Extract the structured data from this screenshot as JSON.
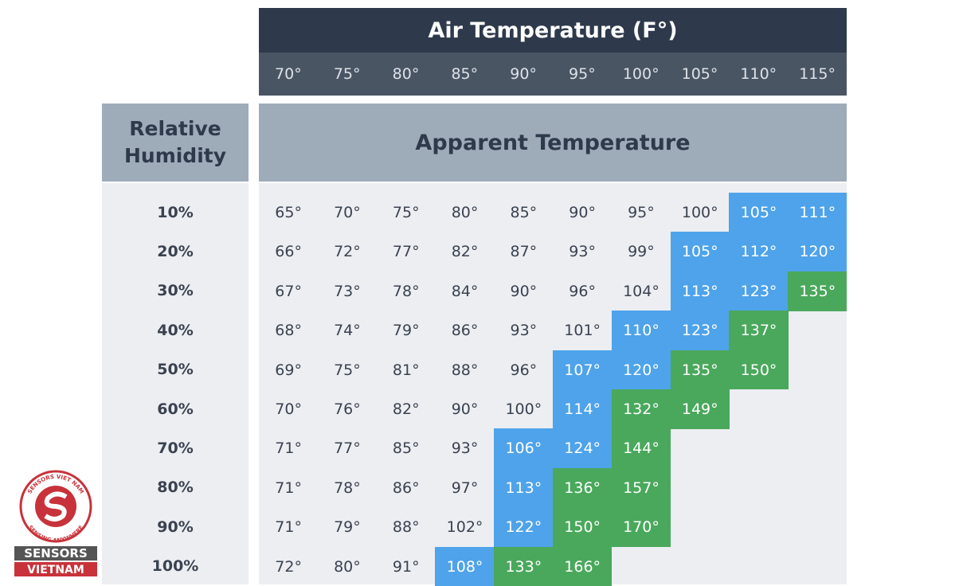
{
  "header": {
    "title": "Air Temperature (F°)",
    "columns": [
      "70°",
      "75°",
      "80°",
      "85°",
      "90°",
      "95°",
      "100°",
      "105°",
      "110°",
      "115°"
    ]
  },
  "row_header": "Relative Humidity",
  "body_header": "Apparent Temperature",
  "rows": [
    {
      "label": "10%",
      "cells": [
        "65°",
        "70°",
        "75°",
        "80°",
        "85°",
        "90°",
        "95°",
        "100°",
        "105°",
        "111°"
      ],
      "fills": [
        null,
        null,
        null,
        null,
        null,
        null,
        null,
        null,
        "#4ea3ea",
        "#4ea3ea"
      ]
    },
    {
      "label": "20%",
      "cells": [
        "66°",
        "72°",
        "77°",
        "82°",
        "87°",
        "93°",
        "99°",
        "105°",
        "112°",
        "120°"
      ],
      "fills": [
        null,
        null,
        null,
        null,
        null,
        null,
        null,
        "#4ea3ea",
        "#4ea3ea",
        "#4ea3ea"
      ]
    },
    {
      "label": "30%",
      "cells": [
        "67°",
        "73°",
        "78°",
        "84°",
        "90°",
        "96°",
        "104°",
        "113°",
        "123°",
        "135°"
      ],
      "fills": [
        null,
        null,
        null,
        null,
        null,
        null,
        null,
        "#4ea3ea",
        "#4ea3ea",
        "#4aa85c"
      ]
    },
    {
      "label": "40%",
      "cells": [
        "68°",
        "74°",
        "79°",
        "86°",
        "93°",
        "101°",
        "110°",
        "123°",
        "137°"
      ],
      "fills": [
        null,
        null,
        null,
        null,
        null,
        null,
        "#4ea3ea",
        "#4ea3ea",
        "#4aa85c"
      ]
    },
    {
      "label": "50%",
      "cells": [
        "69°",
        "75°",
        "81°",
        "88°",
        "96°",
        "107°",
        "120°",
        "135°",
        "150°"
      ],
      "fills": [
        null,
        null,
        null,
        null,
        null,
        "#4ea3ea",
        "#4ea3ea",
        "#4aa85c",
        "#4aa85c"
      ]
    },
    {
      "label": "60%",
      "cells": [
        "70°",
        "76°",
        "82°",
        "90°",
        "100°",
        "114°",
        "132°",
        "149°"
      ],
      "fills": [
        null,
        null,
        null,
        null,
        null,
        "#4ea3ea",
        "#4aa85c",
        "#4aa85c"
      ]
    },
    {
      "label": "70%",
      "cells": [
        "71°",
        "77°",
        "85°",
        "93°",
        "106°",
        "124°",
        "144°"
      ],
      "fills": [
        null,
        null,
        null,
        null,
        "#4ea3ea",
        "#4ea3ea",
        "#4aa85c"
      ]
    },
    {
      "label": "80%",
      "cells": [
        "71°",
        "78°",
        "86°",
        "97°",
        "113°",
        "136°",
        "157°"
      ],
      "fills": [
        null,
        null,
        null,
        null,
        "#4ea3ea",
        "#4aa85c",
        "#4aa85c"
      ]
    },
    {
      "label": "90%",
      "cells": [
        "71°",
        "79°",
        "88°",
        "102°",
        "122°",
        "150°",
        "170°"
      ],
      "fills": [
        null,
        null,
        null,
        null,
        "#4ea3ea",
        "#4aa85c",
        "#4aa85c"
      ]
    },
    {
      "label": "100%",
      "cells": [
        "72°",
        "80°",
        "91°",
        "108°",
        "133°",
        "166°"
      ],
      "fills": [
        null,
        null,
        null,
        "#4ea3ea",
        "#4aa85c",
        "#4aa85c"
      ]
    }
  ],
  "logo": {
    "ring_top": "SENSORS VIET NAM",
    "ring_bottom": "SENSING ANYWHERE",
    "line1": "SENSORS",
    "line2": "VIETNAM"
  }
}
